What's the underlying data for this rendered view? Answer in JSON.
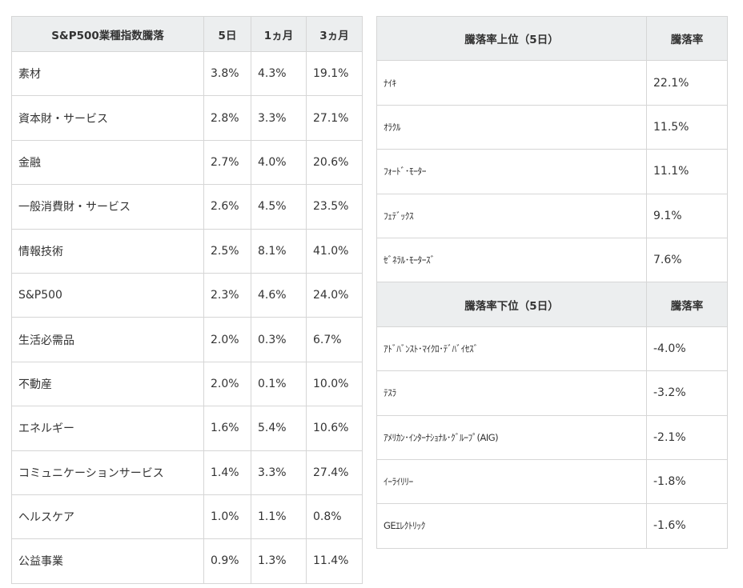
{
  "sector_table": {
    "headers": [
      "S&P500業種指数騰落",
      "5日",
      "1ヵ月",
      "3ヵ月"
    ],
    "rows": [
      {
        "name": "素材",
        "d5": "3.8%",
        "m1": "4.3%",
        "m3": "19.1%"
      },
      {
        "name": "資本財・サービス",
        "d5": "2.8%",
        "m1": "3.3%",
        "m3": "27.1%"
      },
      {
        "name": "金融",
        "d5": "2.7%",
        "m1": "4.0%",
        "m3": "20.6%"
      },
      {
        "name": "一般消費財・サービス",
        "d5": "2.6%",
        "m1": "4.5%",
        "m3": "23.5%"
      },
      {
        "name": "情報技術",
        "d5": "2.5%",
        "m1": "8.1%",
        "m3": "41.0%"
      },
      {
        "name": "S&P500",
        "d5": "2.3%",
        "m1": "4.6%",
        "m3": "24.0%"
      },
      {
        "name": "生活必需品",
        "d5": "2.0%",
        "m1": "0.3%",
        "m3": "6.7%"
      },
      {
        "name": "不動産",
        "d5": "2.0%",
        "m1": "0.1%",
        "m3": "10.0%"
      },
      {
        "name": "エネルギー",
        "d5": "1.6%",
        "m1": "5.4%",
        "m3": "10.6%"
      },
      {
        "name": "コミュニケーションサービス",
        "d5": "1.4%",
        "m1": "3.3%",
        "m3": "27.4%"
      },
      {
        "name": "ヘルスケア",
        "d5": "1.0%",
        "m1": "1.1%",
        "m3": "0.8%"
      },
      {
        "name": "公益事業",
        "d5": "0.9%",
        "m1": "1.3%",
        "m3": "11.4%"
      }
    ]
  },
  "top_table": {
    "headers": [
      "騰落率上位（5日）",
      "騰落率"
    ],
    "rows": [
      {
        "name": "ﾅｲｷ",
        "rate": "22.1%"
      },
      {
        "name": "ｵﾗｸﾙ",
        "rate": "11.5%"
      },
      {
        "name": "ﾌｫｰﾄﾞ･ﾓｰﾀｰ",
        "rate": "11.1%"
      },
      {
        "name": "ﾌｪﾃﾞｯｸｽ",
        "rate": "9.1%"
      },
      {
        "name": "ｾﾞﾈﾗﾙ･ﾓｰﾀｰｽﾞ",
        "rate": "7.6%"
      }
    ]
  },
  "bottom_table": {
    "headers": [
      "騰落率下位（5日）",
      "騰落率"
    ],
    "rows": [
      {
        "name": "ｱﾄﾞﾊﾞﾝｽﾄ･ﾏｲｸﾛ･ﾃﾞﾊﾞｲｾｽﾞ",
        "rate": "-4.0%"
      },
      {
        "name": "ﾃｽﾗ",
        "rate": "-3.2%"
      },
      {
        "name": "ｱﾒﾘｶﾝ･ｲﾝﾀｰﾅｼｮﾅﾙ･ｸﾞﾙｰﾌﾟ(AIG)",
        "rate": "-2.1%"
      },
      {
        "name": "ｲｰﾗｲﾘﾘｰ",
        "rate": "-1.8%"
      },
      {
        "name": "GEｴﾚｸﾄﾘｯｸ",
        "rate": "-1.6%"
      }
    ]
  }
}
